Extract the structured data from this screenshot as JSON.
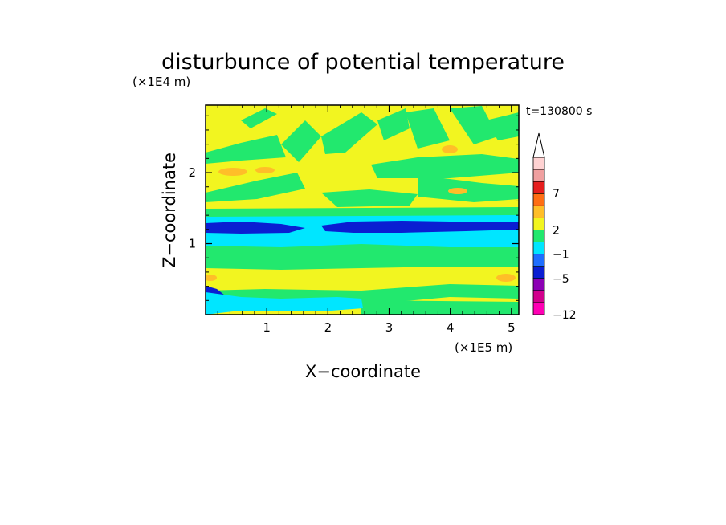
{
  "chart_data": {
    "type": "heatmap",
    "title": "disturbunce of potential temperature",
    "xlabel": "X−coordinate",
    "ylabel": "Z−coordinate",
    "x_scale_label": "(×1E5 m)",
    "y_scale_label": "(×1E4 m)",
    "time_label": "t=130800 s",
    "xlim": [
      0,
      5.12
    ],
    "ylim": [
      0,
      2.95
    ],
    "x_ticks": [
      "1",
      "2",
      "3",
      "4",
      "5"
    ],
    "y_ticks": [
      "1",
      "2"
    ],
    "colorbar": {
      "tick_labels": [
        "−12",
        "−5",
        "−1",
        "2",
        "7"
      ],
      "levels": [
        -12,
        -10,
        -8,
        -5,
        -3,
        -1,
        0,
        2,
        3,
        5,
        7,
        9,
        12
      ],
      "colors": [
        "#ff00b4",
        "#d2008c",
        "#8c00b4",
        "#0a1ed2",
        "#1e6eff",
        "#00e6ff",
        "#22e86e",
        "#f2f520",
        "#ffbe28",
        "#ff6e14",
        "#e61e1e",
        "#f0a0a0",
        "#ffd2d2"
      ],
      "extend": "max"
    },
    "background_color": "#f2f520",
    "bands": [
      {
        "name": "lowest-blue",
        "y": [
          0.08,
          0.28
        ],
        "x": [
          0.0,
          0.35
        ],
        "value": -6
      },
      {
        "name": "low-green",
        "y": [
          0.2,
          0.4
        ],
        "x": [
          0.0,
          5.12
        ],
        "value": -0.5
      },
      {
        "name": "mid-green",
        "y": [
          0.7,
          0.95
        ],
        "x": [
          0.0,
          5.12
        ],
        "value": -0.5
      },
      {
        "name": "cyan",
        "y": [
          0.98,
          1.38
        ],
        "x": [
          0.0,
          5.12
        ],
        "value": -2
      },
      {
        "name": "dark-blue",
        "y": [
          1.22,
          1.34
        ],
        "x": [
          0.0,
          5.12
        ],
        "value": -6
      },
      {
        "name": "upper-green",
        "y": [
          1.6,
          1.85
        ],
        "x": [
          0.0,
          5.12
        ],
        "value": -0.5
      },
      {
        "name": "top-green",
        "y": [
          2.3,
          2.6
        ],
        "x": [
          0.0,
          5.12
        ],
        "value": -0.5
      }
    ]
  }
}
